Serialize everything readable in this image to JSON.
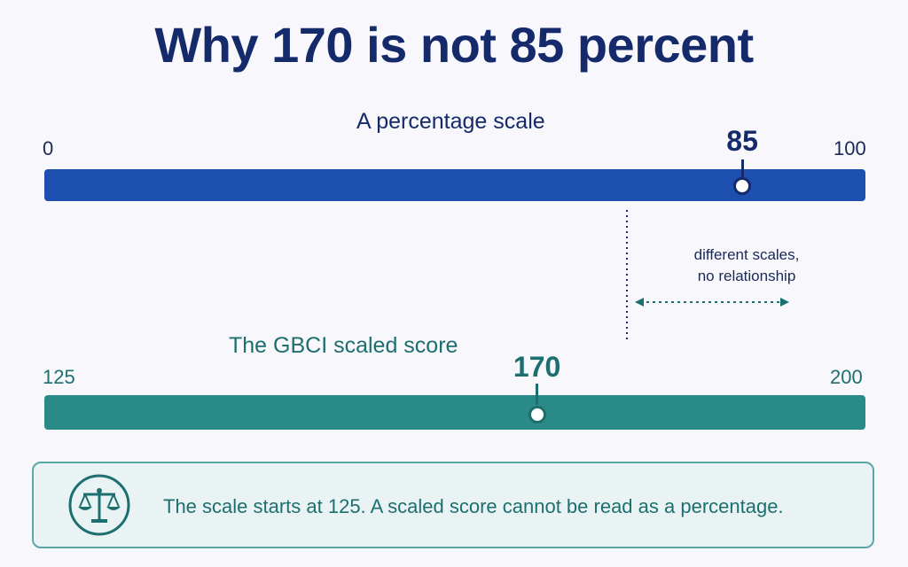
{
  "title": "Why 170 is not 85 percent",
  "percentage_scale": {
    "label": "A percentage scale",
    "min_label": "0",
    "max_label": "100",
    "marker_label": "85",
    "min": 0,
    "max": 100,
    "value": 85,
    "color": "#1c4fb0"
  },
  "gbci_scale": {
    "label": "The GBCI scaled score",
    "min_label": "125",
    "max_label": "200",
    "marker_label": "170",
    "min": 125,
    "max": 200,
    "value": 170,
    "color": "#2a8a88"
  },
  "relationship_note": {
    "line1": "different scales,",
    "line2": "no relationship"
  },
  "callout": {
    "text": "The scale starts at 125. A scaled score cannot be read as a percentage.",
    "icon": "balance-scale-icon"
  }
}
